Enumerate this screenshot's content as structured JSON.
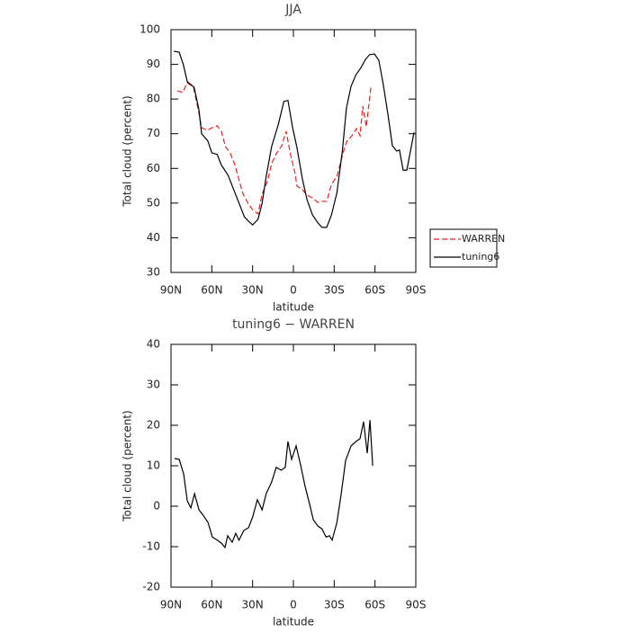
{
  "chart_data": [
    {
      "type": "line",
      "title": "JJA",
      "xlabel": "latitude",
      "ylabel": "Total cloud (percent)",
      "xlim": [
        90,
        -90
      ],
      "ylim": [
        30,
        100
      ],
      "xticks": [
        {
          "value": 90,
          "label": "90N"
        },
        {
          "value": 60,
          "label": "60N"
        },
        {
          "value": 30,
          "label": "30N"
        },
        0,
        {
          "value": -30,
          "label": "30S"
        },
        {
          "value": -60,
          "label": "60S"
        },
        {
          "value": -90,
          "label": "90S"
        }
      ],
      "yticks": [
        30,
        40,
        50,
        60,
        70,
        80,
        90,
        100
      ],
      "legend": "right",
      "series": [
        {
          "name": "WARREN",
          "color": "#e8231f",
          "dash": true,
          "x": [
            85.4,
            81.4,
            78,
            73.5,
            70,
            67.5,
            63,
            60,
            56,
            53,
            50,
            46.5,
            43,
            40,
            37,
            33,
            30,
            26,
            23,
            19,
            16,
            12.6,
            8.6,
            5.3,
            2,
            -1.3,
            -2.6,
            -6.6,
            -10,
            -14,
            -18,
            -21,
            -24.5,
            -28,
            -32,
            -36,
            -39,
            -43,
            -46.3,
            -49,
            -51,
            -53.6,
            -57
          ],
          "values": [
            82.4,
            81.9,
            84.7,
            83.4,
            77,
            71.7,
            71,
            71.7,
            72.3,
            70.7,
            66.3,
            64.5,
            61,
            56.7,
            52.6,
            49.7,
            48.1,
            46.9,
            52.6,
            56.4,
            61.4,
            64.2,
            66.5,
            70.7,
            63.7,
            58.5,
            54.9,
            53.9,
            52.3,
            51.5,
            50.2,
            50.5,
            50.5,
            55.4,
            57.7,
            63.7,
            67.6,
            69.4,
            71.5,
            69.4,
            78,
            72,
            83.4
          ]
        },
        {
          "name": "tuning6",
          "color": "#000000",
          "dash": false,
          "x": [
            88,
            84,
            81,
            78,
            73,
            69.5,
            67.5,
            63,
            60,
            56,
            53,
            48,
            43,
            40,
            36,
            33,
            30,
            26,
            23,
            20,
            16,
            11,
            7,
            4,
            0.7,
            -2.6,
            -6.6,
            -10,
            -14,
            -18,
            -21,
            -24.5,
            -28,
            -32,
            -36,
            -39,
            -42.4,
            -46,
            -49.6,
            -53,
            -56,
            -59.6,
            -62.8,
            -66,
            -69.5,
            -72.8,
            -76,
            -78,
            -80.7,
            -83.4,
            -88.7
          ],
          "values": [
            93.8,
            93.5,
            90,
            85,
            83.4,
            77,
            70,
            68,
            64.5,
            64,
            61,
            58,
            53,
            50,
            46,
            44.8,
            43.7,
            45.3,
            50,
            57.7,
            66.3,
            72.8,
            79.3,
            79.6,
            72,
            66,
            57,
            51,
            46.6,
            44.3,
            43,
            43,
            46.6,
            53,
            65,
            77.4,
            83.7,
            87,
            89,
            91.4,
            92.8,
            93,
            91.2,
            84.4,
            75.6,
            66.5,
            65,
            65.3,
            59.5,
            59.5,
            70.4
          ]
        }
      ]
    },
    {
      "type": "line",
      "title": "tuning6 − WARREN",
      "xlabel": "latitude",
      "ylabel": "Total cloud (percent)",
      "xlim": [
        90,
        -90
      ],
      "ylim": [
        -20,
        40
      ],
      "xticks": [
        {
          "value": 90,
          "label": "90N"
        },
        {
          "value": 60,
          "label": "60N"
        },
        {
          "value": 30,
          "label": "30N"
        },
        0,
        {
          "value": -30,
          "label": "30S"
        },
        {
          "value": -60,
          "label": "60S"
        },
        {
          "value": -90,
          "label": "90S"
        }
      ],
      "yticks": [
        -20,
        -10,
        0,
        10,
        20,
        30,
        40
      ],
      "series": [
        {
          "color": "#000000",
          "dash": false,
          "x": [
            87.4,
            84,
            80.7,
            78,
            75.4,
            72.7,
            69.4,
            66,
            62.8,
            59.6,
            56,
            53,
            50.3,
            48.3,
            45,
            42.4,
            40,
            36.5,
            33,
            30,
            26.5,
            23,
            20,
            16,
            12.6,
            9,
            6,
            4,
            1.3,
            -2,
            -5.3,
            -8.6,
            -12,
            -14.6,
            -18,
            -21,
            -24,
            -26.5,
            -28.5,
            -32,
            -35,
            -38.4,
            -42.4,
            -46,
            -49,
            -51.6,
            -54.3,
            -56.3,
            -58.3
          ],
          "values": [
            11.8,
            11.6,
            8,
            1.3,
            -0.4,
            3.1,
            -0.9,
            -2.4,
            -4,
            -7.6,
            -8.4,
            -9.1,
            -10.2,
            -7.3,
            -8.9,
            -6.7,
            -8.4,
            -6,
            -5.3,
            -2.7,
            1.6,
            -0.9,
            3.1,
            6,
            9.6,
            8.9,
            9.6,
            16,
            11.6,
            14.9,
            10.2,
            4.9,
            0.4,
            -3.3,
            -4.9,
            -5.6,
            -7.6,
            -7.3,
            -8.4,
            -4,
            2.7,
            11.3,
            14.9,
            16,
            16.7,
            20.9,
            13.1,
            21.3,
            10
          ]
        }
      ]
    }
  ]
}
